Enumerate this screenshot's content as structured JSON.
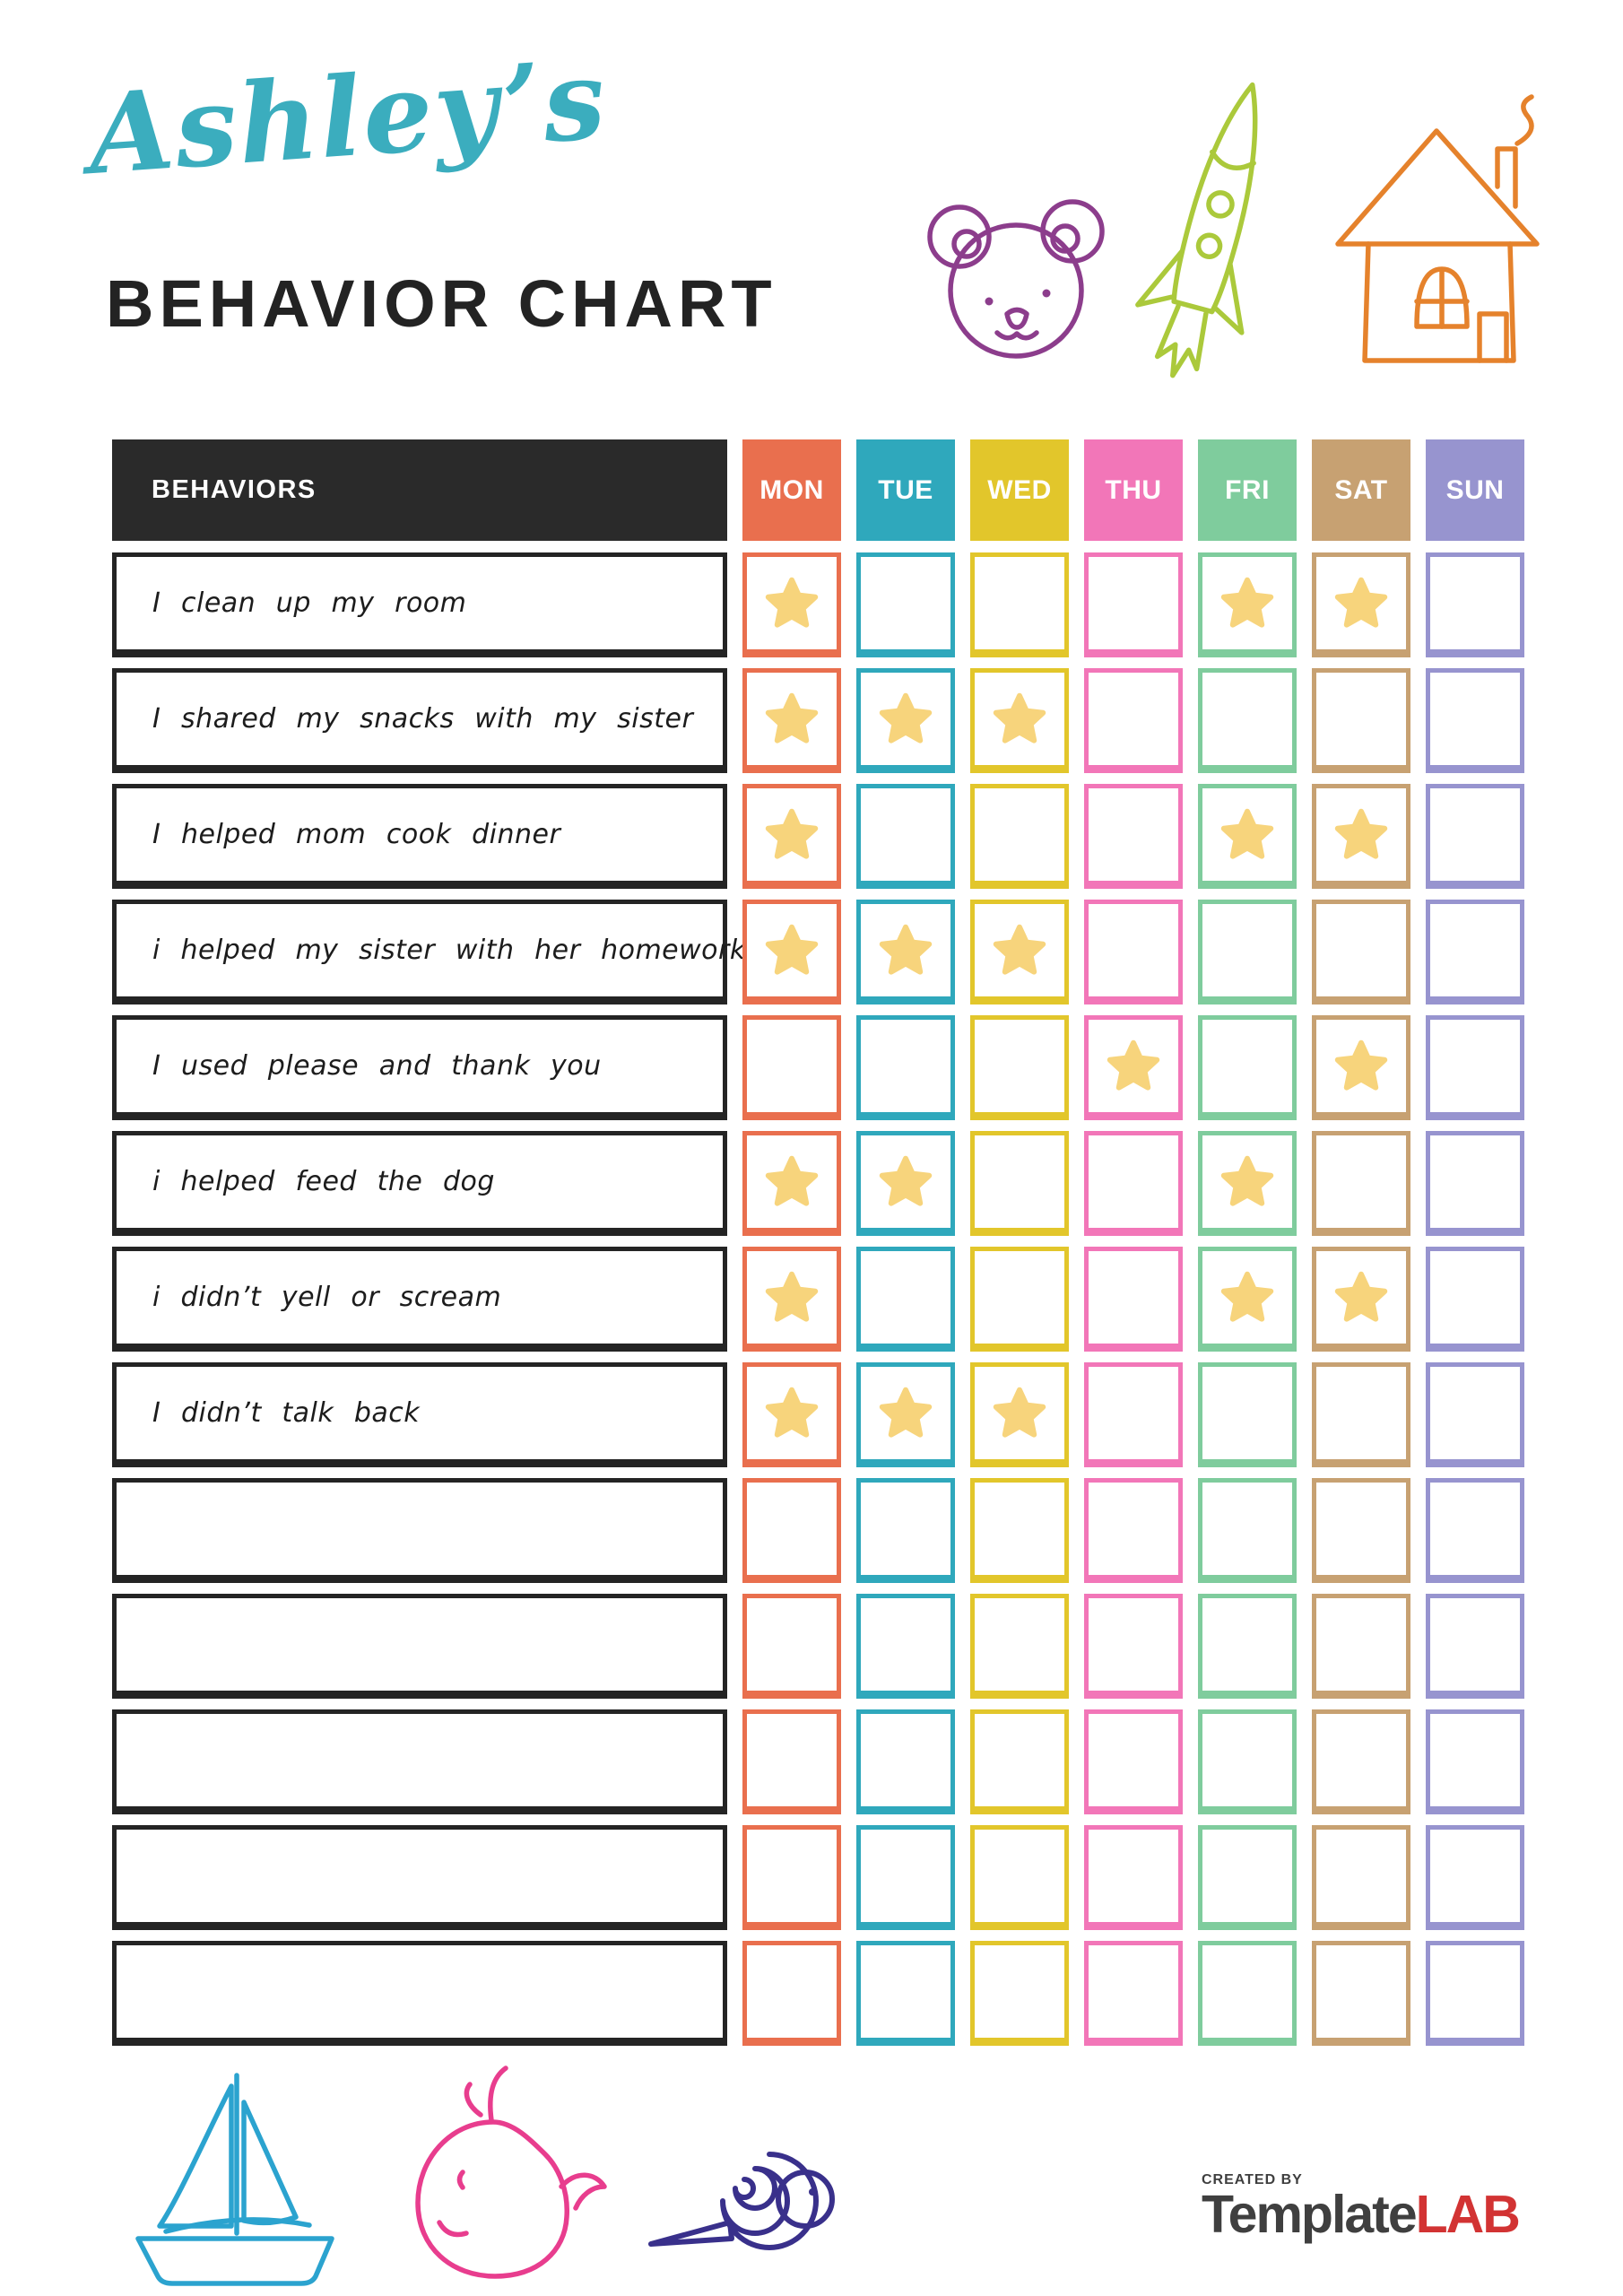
{
  "header": {
    "script_title": "Ashley’s",
    "main_title": "BEHAVIOR CHART"
  },
  "colors": {
    "title-teal": "#3BADBE",
    "header-bg": "#2A2A2A",
    "label-border": "#242424",
    "star": "#F7D47C",
    "bear": "#8C3D8C",
    "rocket": "#ABC93B",
    "house": "#E5822C",
    "sailboat": "#2BA3CF",
    "whale": "#E83D8E",
    "snail": "#39308B",
    "brand-gray": "#3F3F3F",
    "brand-red": "#D23333"
  },
  "doodles": {
    "top_icons": [
      "bear-icon",
      "rocket-icon",
      "house-icon"
    ],
    "bottom_icons": [
      "sailboat-icon",
      "whale-icon",
      "snail-icon"
    ]
  },
  "table": {
    "behaviors_header": "BEHAVIORS",
    "days": [
      {
        "label": "MON",
        "color": "#E96F4E"
      },
      {
        "label": "TUE",
        "color": "#2FA8BC"
      },
      {
        "label": "WED",
        "color": "#E2C62B"
      },
      {
        "label": "THU",
        "color": "#F276B8"
      },
      {
        "label": "FRI",
        "color": "#7FCC9D"
      },
      {
        "label": "SAT",
        "color": "#C7A172"
      },
      {
        "label": "SUN",
        "color": "#9794CF"
      }
    ],
    "rows": [
      {
        "label": "I clean up my room",
        "stars": [
          0,
          4,
          5
        ]
      },
      {
        "label": "I shared my snacks with my sister",
        "stars": [
          0,
          1,
          2
        ]
      },
      {
        "label": "I helped mom cook dinner",
        "stars": [
          0,
          4,
          5
        ]
      },
      {
        "label": "i helped my sister with her homework",
        "stars": [
          0,
          1,
          2
        ]
      },
      {
        "label": "I used please and thank you",
        "stars": [
          3,
          5
        ]
      },
      {
        "label": "i helped feed the dog",
        "stars": [
          0,
          1,
          4
        ]
      },
      {
        "label": "i didn’t yell or scream",
        "stars": [
          0,
          4,
          5
        ]
      },
      {
        "label": "I didn’t talk back",
        "stars": [
          0,
          1,
          2
        ]
      },
      {
        "label": "",
        "stars": []
      },
      {
        "label": "",
        "stars": []
      },
      {
        "label": "",
        "stars": []
      },
      {
        "label": "",
        "stars": []
      },
      {
        "label": "",
        "stars": []
      }
    ]
  },
  "footer": {
    "created_by": "CREATED BY",
    "brand": {
      "part1": "Template",
      "part2": "LAB"
    }
  }
}
